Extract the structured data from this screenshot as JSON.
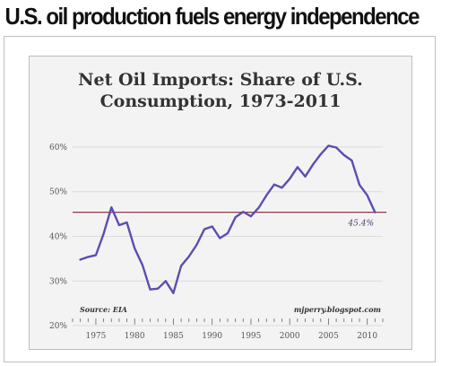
{
  "headline": "U.S. oil production fuels energy independence",
  "chart_data": {
    "type": "line",
    "title_lines": [
      "Net Oil Imports: Share of U.S.",
      "Consumption, 1973-2011"
    ],
    "xlabel": "",
    "ylabel": "",
    "xlim": [
      1972,
      2012
    ],
    "ylim": [
      19,
      63
    ],
    "x_ticks": [
      1975,
      1980,
      1985,
      1990,
      1995,
      2000,
      2005,
      2010
    ],
    "y_ticks": [
      {
        "value": 20,
        "label": "20%"
      },
      {
        "value": 30,
        "label": "30%"
      },
      {
        "value": 40,
        "label": "40%"
      },
      {
        "value": 50,
        "label": "50%"
      },
      {
        "value": 60,
        "label": "60%"
      }
    ],
    "grid": true,
    "series": [
      {
        "color": "#5a4fb0",
        "x": [
          1973,
          1974,
          1975,
          1976,
          1977,
          1978,
          1979,
          1980,
          1981,
          1982,
          1983,
          1984,
          1985,
          1986,
          1987,
          1988,
          1989,
          1990,
          1991,
          1992,
          1993,
          1994,
          1995,
          1996,
          1997,
          1998,
          1999,
          2000,
          2001,
          2002,
          2003,
          2004,
          2005,
          2006,
          2007,
          2008,
          2009,
          2010,
          2011
        ],
        "y": [
          34.8,
          35.4,
          35.8,
          40.6,
          46.5,
          42.5,
          43.1,
          37.3,
          33.6,
          28.1,
          28.3,
          30.0,
          27.3,
          33.4,
          35.5,
          38.1,
          41.6,
          42.2,
          39.6,
          40.7,
          44.3,
          45.5,
          44.5,
          46.4,
          49.2,
          51.6,
          50.9,
          52.9,
          55.5,
          53.4,
          56.1,
          58.4,
          60.3,
          59.9,
          58.2,
          57.0,
          51.5,
          49.2,
          45.4
        ]
      }
    ],
    "reference_line": {
      "value": 45.4,
      "label": "45.4%",
      "color": "#8b3a4a"
    },
    "source_note": "Source: EIA",
    "credit": "mjperry.blogspot.com"
  }
}
